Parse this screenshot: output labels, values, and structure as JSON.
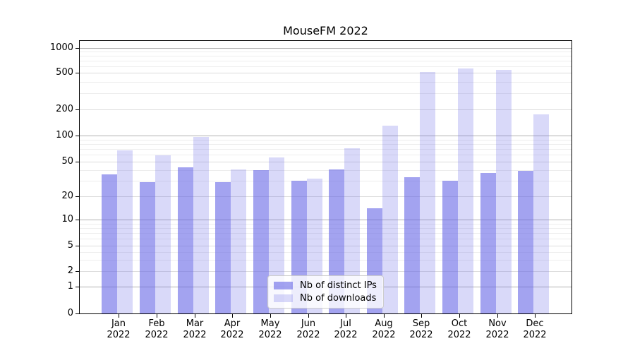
{
  "chart_data": {
    "type": "bar",
    "title": "MouseFM 2022",
    "categories": [
      "Jan 2022",
      "Feb 2022",
      "Mar 2022",
      "Apr 2022",
      "May 2022",
      "Jun 2022",
      "Jul 2022",
      "Aug 2022",
      "Sep 2022",
      "Oct 2022",
      "Nov 2022",
      "Dec 2022"
    ],
    "series": [
      {
        "name": "Nb of distinct IPs",
        "color": "rgba(102,102,230,0.60)",
        "values": [
          36,
          29,
          43,
          29,
          40,
          30,
          41,
          14,
          33,
          30,
          37,
          39
        ]
      },
      {
        "name": "Nb of downloads",
        "color": "rgba(102,102,230,0.25)",
        "values": [
          68,
          59,
          96,
          41,
          56,
          32,
          72,
          130,
          505,
          563,
          537,
          176
        ]
      }
    ],
    "xlabel": "",
    "ylabel": "",
    "yscale": "symlog",
    "ylim": [
      0,
      1000
    ],
    "yticks": [
      0,
      1,
      2,
      5,
      10,
      20,
      50,
      100,
      200,
      500,
      1000
    ],
    "yticks_major": [
      1,
      10,
      100,
      1000
    ],
    "yticks_minor": [
      3,
      4,
      6,
      7,
      8,
      9,
      30,
      40,
      60,
      70,
      80,
      90,
      300,
      400,
      600,
      700,
      800,
      900
    ],
    "grid": true,
    "legend_position": "lower center"
  }
}
